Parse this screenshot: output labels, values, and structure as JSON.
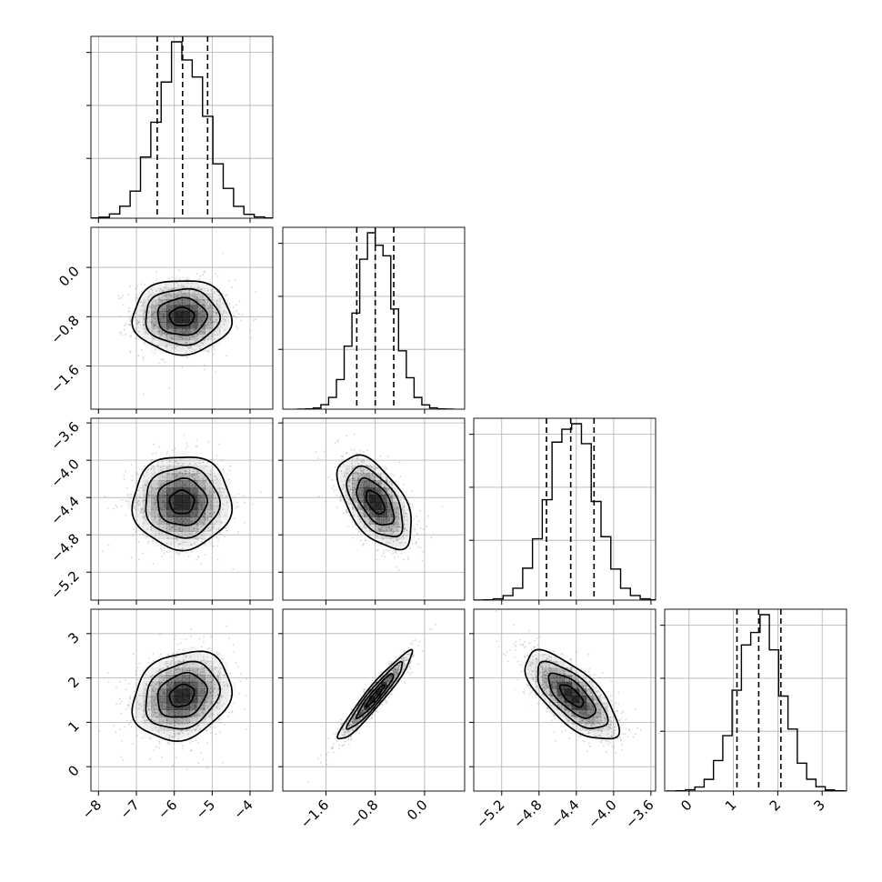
{
  "chart_data": {
    "type": "corner",
    "n_params": 4,
    "params": [
      {
        "mean": -5.8,
        "sd": 0.65,
        "q16": -6.45,
        "q50": -5.78,
        "q84": -5.12,
        "range": [
          -8.2,
          -3.4
        ],
        "ticks": [
          -8,
          -7,
          -6,
          -5,
          -4
        ],
        "tick_labels": [
          "−8",
          "−7",
          "−6",
          "−5",
          "−4"
        ]
      },
      {
        "mean": -0.8,
        "sd": 0.3,
        "q16": -1.1,
        "q50": -0.8,
        "q84": -0.5,
        "range": [
          -2.3,
          0.65
        ],
        "ticks": [
          -1.6,
          -0.8,
          0.0
        ],
        "tick_labels": [
          "−1.6",
          "−0.8",
          "0.0"
        ]
      },
      {
        "mean": -4.45,
        "sd": 0.25,
        "q16": -4.72,
        "q50": -4.46,
        "q84": -4.21,
        "range": [
          -5.5,
          -3.55
        ],
        "ticks": [
          -5.2,
          -4.8,
          -4.4,
          -4.0,
          -3.6
        ],
        "tick_labels": [
          "−5.2",
          "−4.8",
          "−4.4",
          "−4.0",
          "−3.6"
        ]
      },
      {
        "mean": 1.6,
        "sd": 0.5,
        "q16": 1.08,
        "q50": 1.57,
        "q84": 2.07,
        "range": [
          -0.55,
          3.55
        ],
        "ticks": [
          0,
          1,
          2,
          3
        ],
        "tick_labels": [
          "0",
          "1",
          "2",
          "3"
        ]
      }
    ],
    "correlations": [
      [
        1.0,
        0.0,
        0.0,
        0.2
      ],
      [
        0.0,
        1.0,
        -0.55,
        0.95
      ],
      [
        0.0,
        -0.55,
        1.0,
        -0.7
      ],
      [
        0.2,
        0.95,
        -0.7,
        1.0
      ]
    ],
    "contour_levels_sigma": [
      0.5,
      1.0,
      1.5,
      2.0
    ],
    "histogram_bins": 20,
    "quantiles": [
      0.16,
      0.5,
      0.84
    ],
    "grid": true,
    "colors": {
      "line": "#000000",
      "grid": "#b0b0b0",
      "density": "#000000",
      "points": "#888888"
    }
  }
}
